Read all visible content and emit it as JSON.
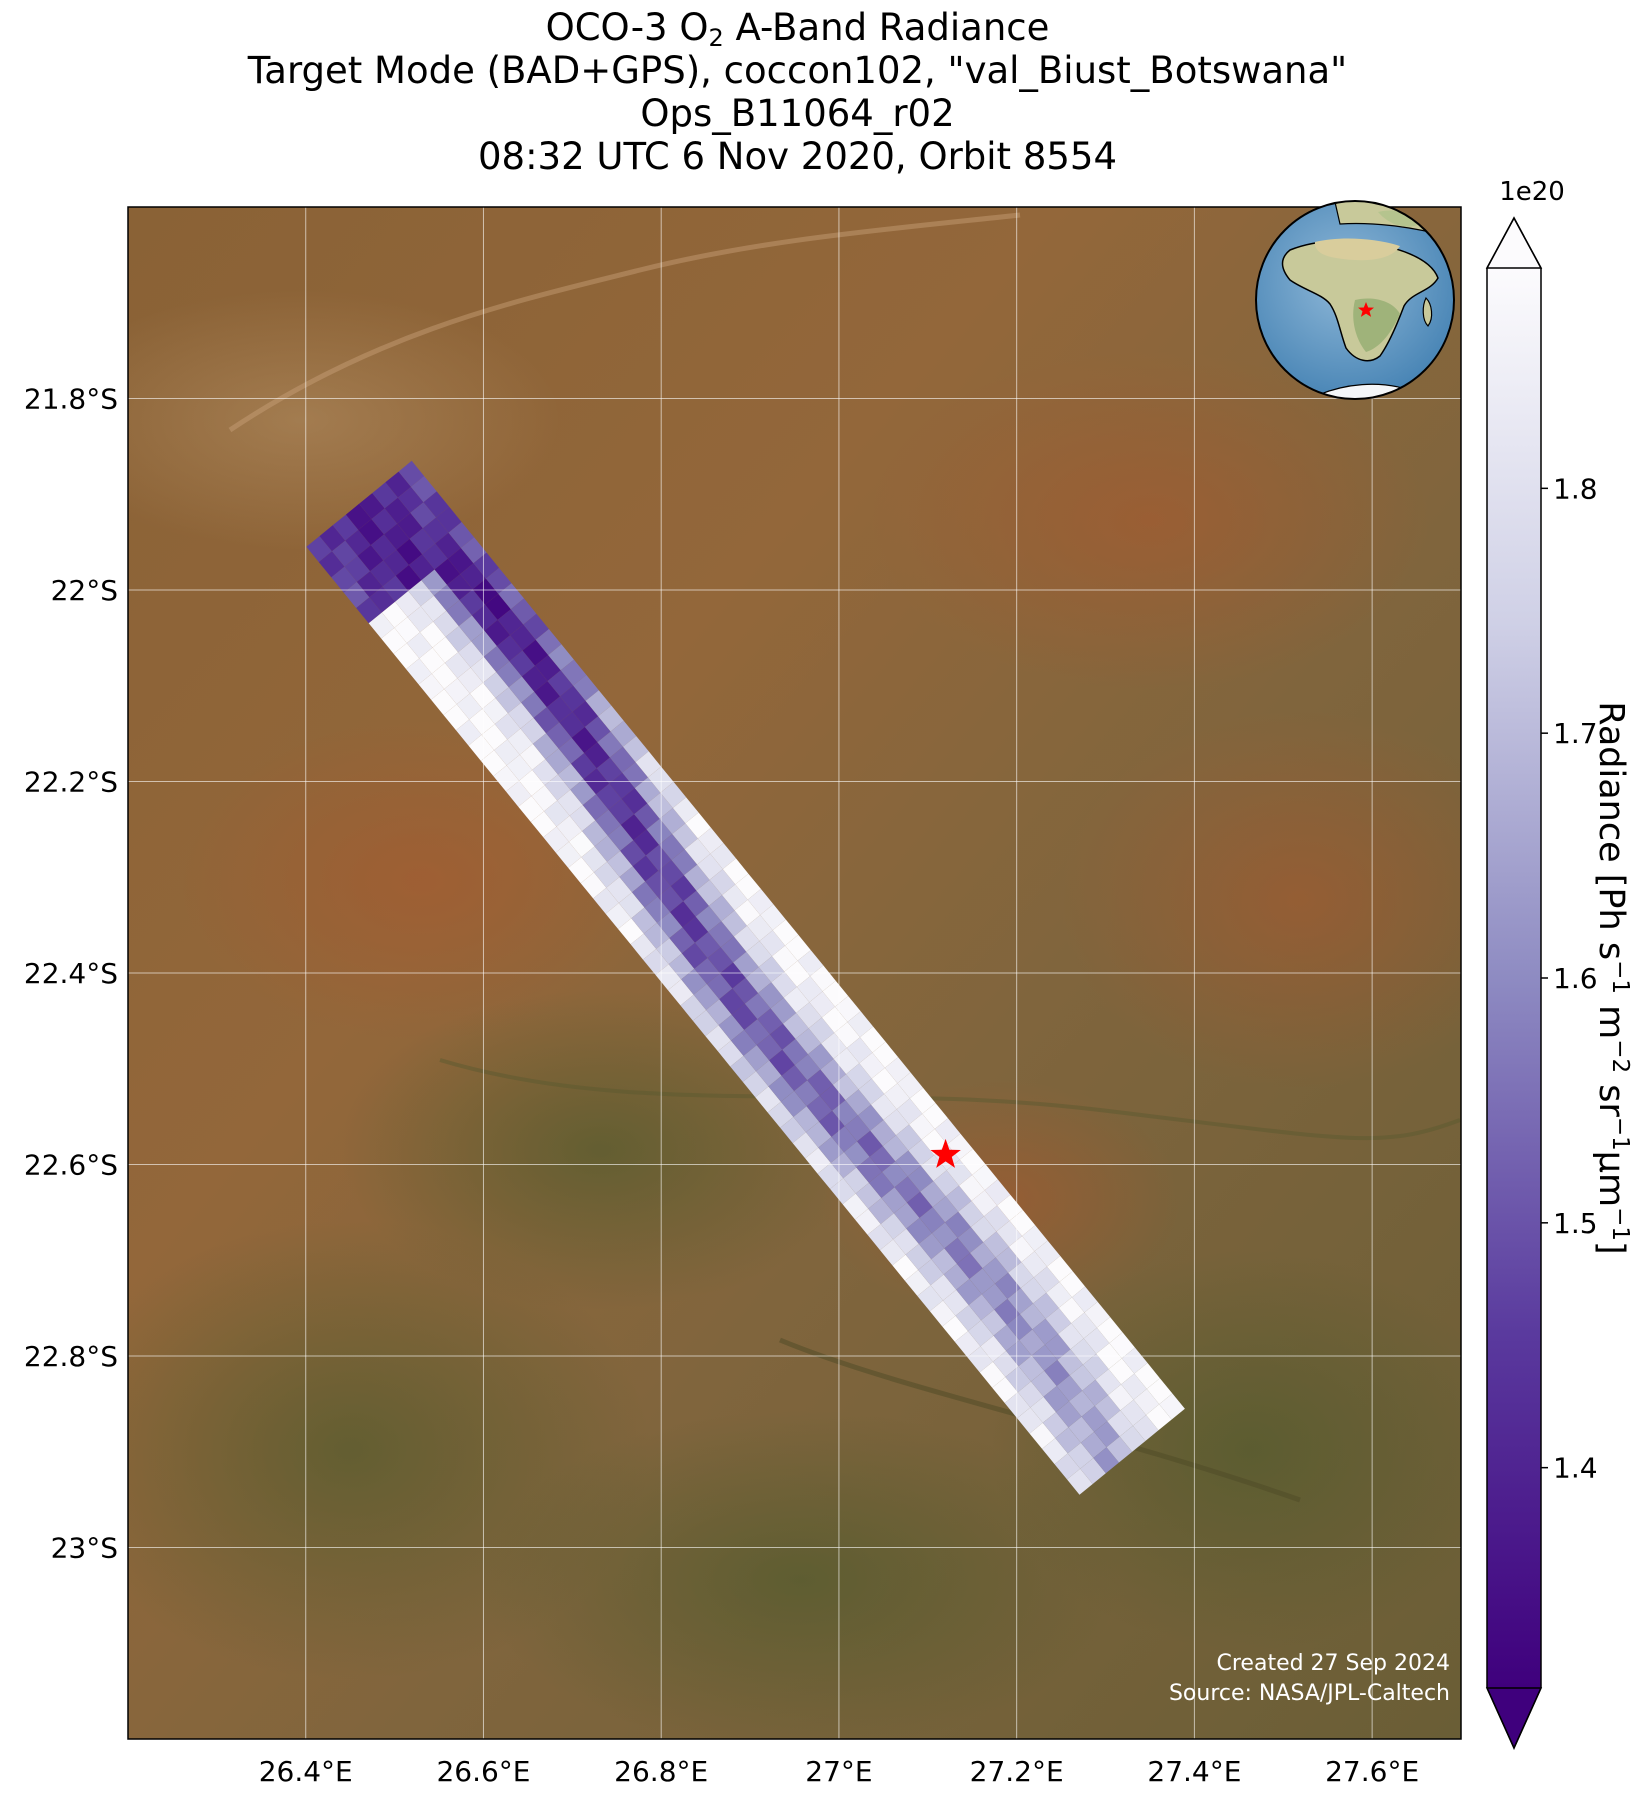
{
  "title": {
    "line1_prefix": "OCO-3 O",
    "line1_sub": "2",
    "line1_suffix": " A-Band Radiance",
    "line2": "Target Mode (BAD+GPS), coccon102, \"val_Biust_Botswana\"",
    "line3": "Ops_B11064_r02",
    "line4": "08:32 UTC 6 Nov 2020, Orbit 8554"
  },
  "map": {
    "lon_range": [
      26.2,
      27.7
    ],
    "lat_range": [
      -23.2,
      -21.6
    ],
    "lon_ticks": [
      26.4,
      26.6,
      26.8,
      27.0,
      27.2,
      27.4,
      27.6
    ],
    "lon_labels": [
      "26.4°E",
      "26.6°E",
      "26.8°E",
      "27°E",
      "27.2°E",
      "27.4°E",
      "27.6°E"
    ],
    "lat_ticks": [
      -21.8,
      -22.0,
      -22.2,
      -22.4,
      -22.6,
      -22.8,
      -23.0
    ],
    "lat_labels": [
      "21.8°S",
      "22°S",
      "22.2°S",
      "22.4°S",
      "22.6°S",
      "22.8°S",
      "23°S"
    ],
    "gridlines": true,
    "basemap": "satellite imagery, arid savanna",
    "target_marker": {
      "icon": "red-star",
      "lon": 27.12,
      "lat": -22.59,
      "color": "#ff0000"
    },
    "credit_line1": "Created 27 Sep 2024",
    "credit_line2": "Source: NASA/JPL-Caltech"
  },
  "inset": {
    "type": "globe",
    "icon": "globe-africa-icon",
    "marker_icon": "red-star"
  },
  "colorbar": {
    "multiplier": "1e20",
    "ticks": [
      1.4,
      1.5,
      1.6,
      1.7,
      1.8
    ],
    "tick_labels": [
      "1.4",
      "1.5",
      "1.6",
      "1.7",
      "1.8"
    ],
    "range": [
      1.31,
      1.89
    ],
    "extend": "both",
    "colormap": "Purples_r",
    "label_prefix": "Radiance [Ph s",
    "label_sup1": "−1",
    "label_mid1": " m",
    "label_sup2": "−2",
    "label_mid2": " sr",
    "label_sup3": "−1",
    "label_mid3": "μm",
    "label_sup4": "−1",
    "label_suffix": "]"
  }
}
